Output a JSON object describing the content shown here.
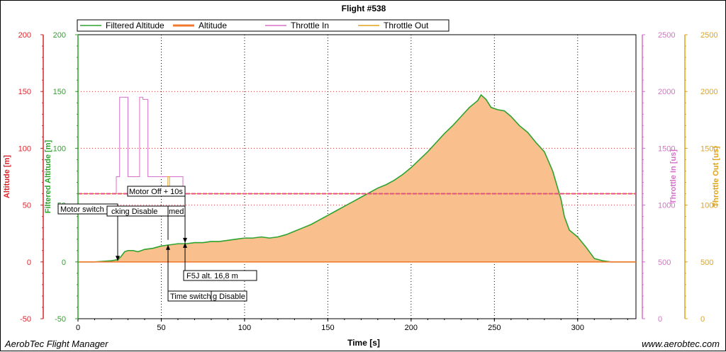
{
  "app": {
    "footer_left": "AerobTec Flight Manager",
    "footer_right": "www.aerobtec.com"
  },
  "chart_data": {
    "type": "area",
    "title": "Flight #538",
    "xlabel": "Time [s]",
    "xlim": [
      0,
      335
    ],
    "xticks": [
      0,
      50,
      100,
      150,
      200,
      250,
      300
    ],
    "axes": {
      "altitude": {
        "label": "Altitude [m]",
        "range": [
          -50,
          200
        ],
        "ticks": [
          -50,
          0,
          50,
          100,
          150,
          200
        ],
        "color": "#d9262e"
      },
      "filtered_altitude": {
        "label": "Filtered Altitude [m]",
        "range": [
          -50,
          200
        ],
        "ticks": [
          -50,
          0,
          50,
          100,
          150,
          200
        ],
        "color": "#2da32d"
      },
      "throttle_in": {
        "label": "Throttle In [us]",
        "range": [
          0,
          2500
        ],
        "ticks": [
          0,
          500,
          1000,
          1500,
          2000,
          2500
        ],
        "color": "#d670c9"
      },
      "throttle_out": {
        "label": "Throttle Out [us]",
        "range": [
          0,
          2500
        ],
        "ticks": [
          0,
          500,
          1000,
          1500,
          2000,
          2500
        ],
        "color": "#e0a41a"
      }
    },
    "legend": [
      {
        "name": "Filtered Altitude",
        "color": "#2da32d"
      },
      {
        "name": "Altitude",
        "color": "#f07a2e"
      },
      {
        "name": "Throttle In",
        "color": "#d670c9"
      },
      {
        "name": "Throttle Out",
        "color": "#e0a41a"
      }
    ],
    "legend_position": "top-left",
    "grid": true,
    "series": [
      {
        "name": "Filtered Altitude",
        "axis": "filtered_altitude",
        "fill": "#f9c08e",
        "x": [
          0,
          10,
          20,
          24,
          26,
          28,
          30,
          33,
          36,
          40,
          45,
          50,
          55,
          60,
          65,
          70,
          75,
          80,
          85,
          90,
          95,
          100,
          105,
          110,
          115,
          120,
          125,
          130,
          135,
          140,
          145,
          150,
          155,
          160,
          165,
          170,
          175,
          180,
          185,
          190,
          195,
          200,
          205,
          210,
          215,
          220,
          225,
          230,
          235,
          240,
          242,
          245,
          248,
          252,
          256,
          260,
          265,
          270,
          275,
          280,
          285,
          288,
          290,
          292,
          295,
          300,
          305,
          310,
          315,
          320,
          325,
          335
        ],
        "y": [
          0,
          0,
          1,
          2,
          5,
          9,
          10,
          10,
          9,
          11,
          12,
          14,
          15,
          16,
          16,
          17,
          17,
          18,
          18,
          19,
          20,
          21,
          21,
          22,
          21,
          22,
          24,
          27,
          30,
          33,
          37,
          41,
          45,
          49,
          53,
          57,
          61,
          65,
          68,
          72,
          77,
          83,
          90,
          97,
          105,
          113,
          120,
          128,
          136,
          142,
          147,
          143,
          136,
          134,
          133,
          128,
          120,
          114,
          105,
          97,
          80,
          65,
          55,
          40,
          28,
          22,
          13,
          3,
          1,
          0,
          0,
          0
        ]
      },
      {
        "name": "Altitude",
        "axis": "altitude",
        "x": [
          0,
          335
        ],
        "y": [
          0,
          0
        ]
      },
      {
        "name": "Throttle In",
        "axis": "throttle_in",
        "x": [
          0,
          23,
          23,
          25,
          25,
          30,
          30,
          32,
          32,
          37,
          37,
          39,
          39,
          42,
          42,
          50,
          50,
          63,
          63,
          335
        ],
        "y": [
          1100,
          1100,
          1250,
          1250,
          1950,
          1950,
          1250,
          1250,
          1250,
          1250,
          1950,
          1950,
          1930,
          1930,
          1250,
          1250,
          1250,
          1250,
          1100,
          1100
        ]
      },
      {
        "name": "Throttle Out",
        "axis": "throttle_out",
        "x": [
          0,
          54,
          54,
          55,
          55,
          335
        ],
        "y": [
          1100,
          1100,
          1250,
          1250,
          1100,
          1100
        ]
      }
    ],
    "annotations": [
      {
        "text": "Motor switch On",
        "x": 24
      },
      {
        "text": "Locking Disabled / Armed",
        "x": 54
      },
      {
        "text": "Motor Off + 10s",
        "x": 64
      },
      {
        "text": "Time switching Disable",
        "x": 54
      },
      {
        "text": "F5J alt. 16,8 m",
        "x": 64
      }
    ],
    "annotation_labels": {
      "motor_on": "Motor switch On",
      "locking": "cking Disable",
      "armed": "med",
      "motor_off": "Motor Off + 10s",
      "f5j": "F5J alt. 16,8 m",
      "time_switch_a": "Time switch",
      "time_switch_b": "g Disable"
    }
  }
}
